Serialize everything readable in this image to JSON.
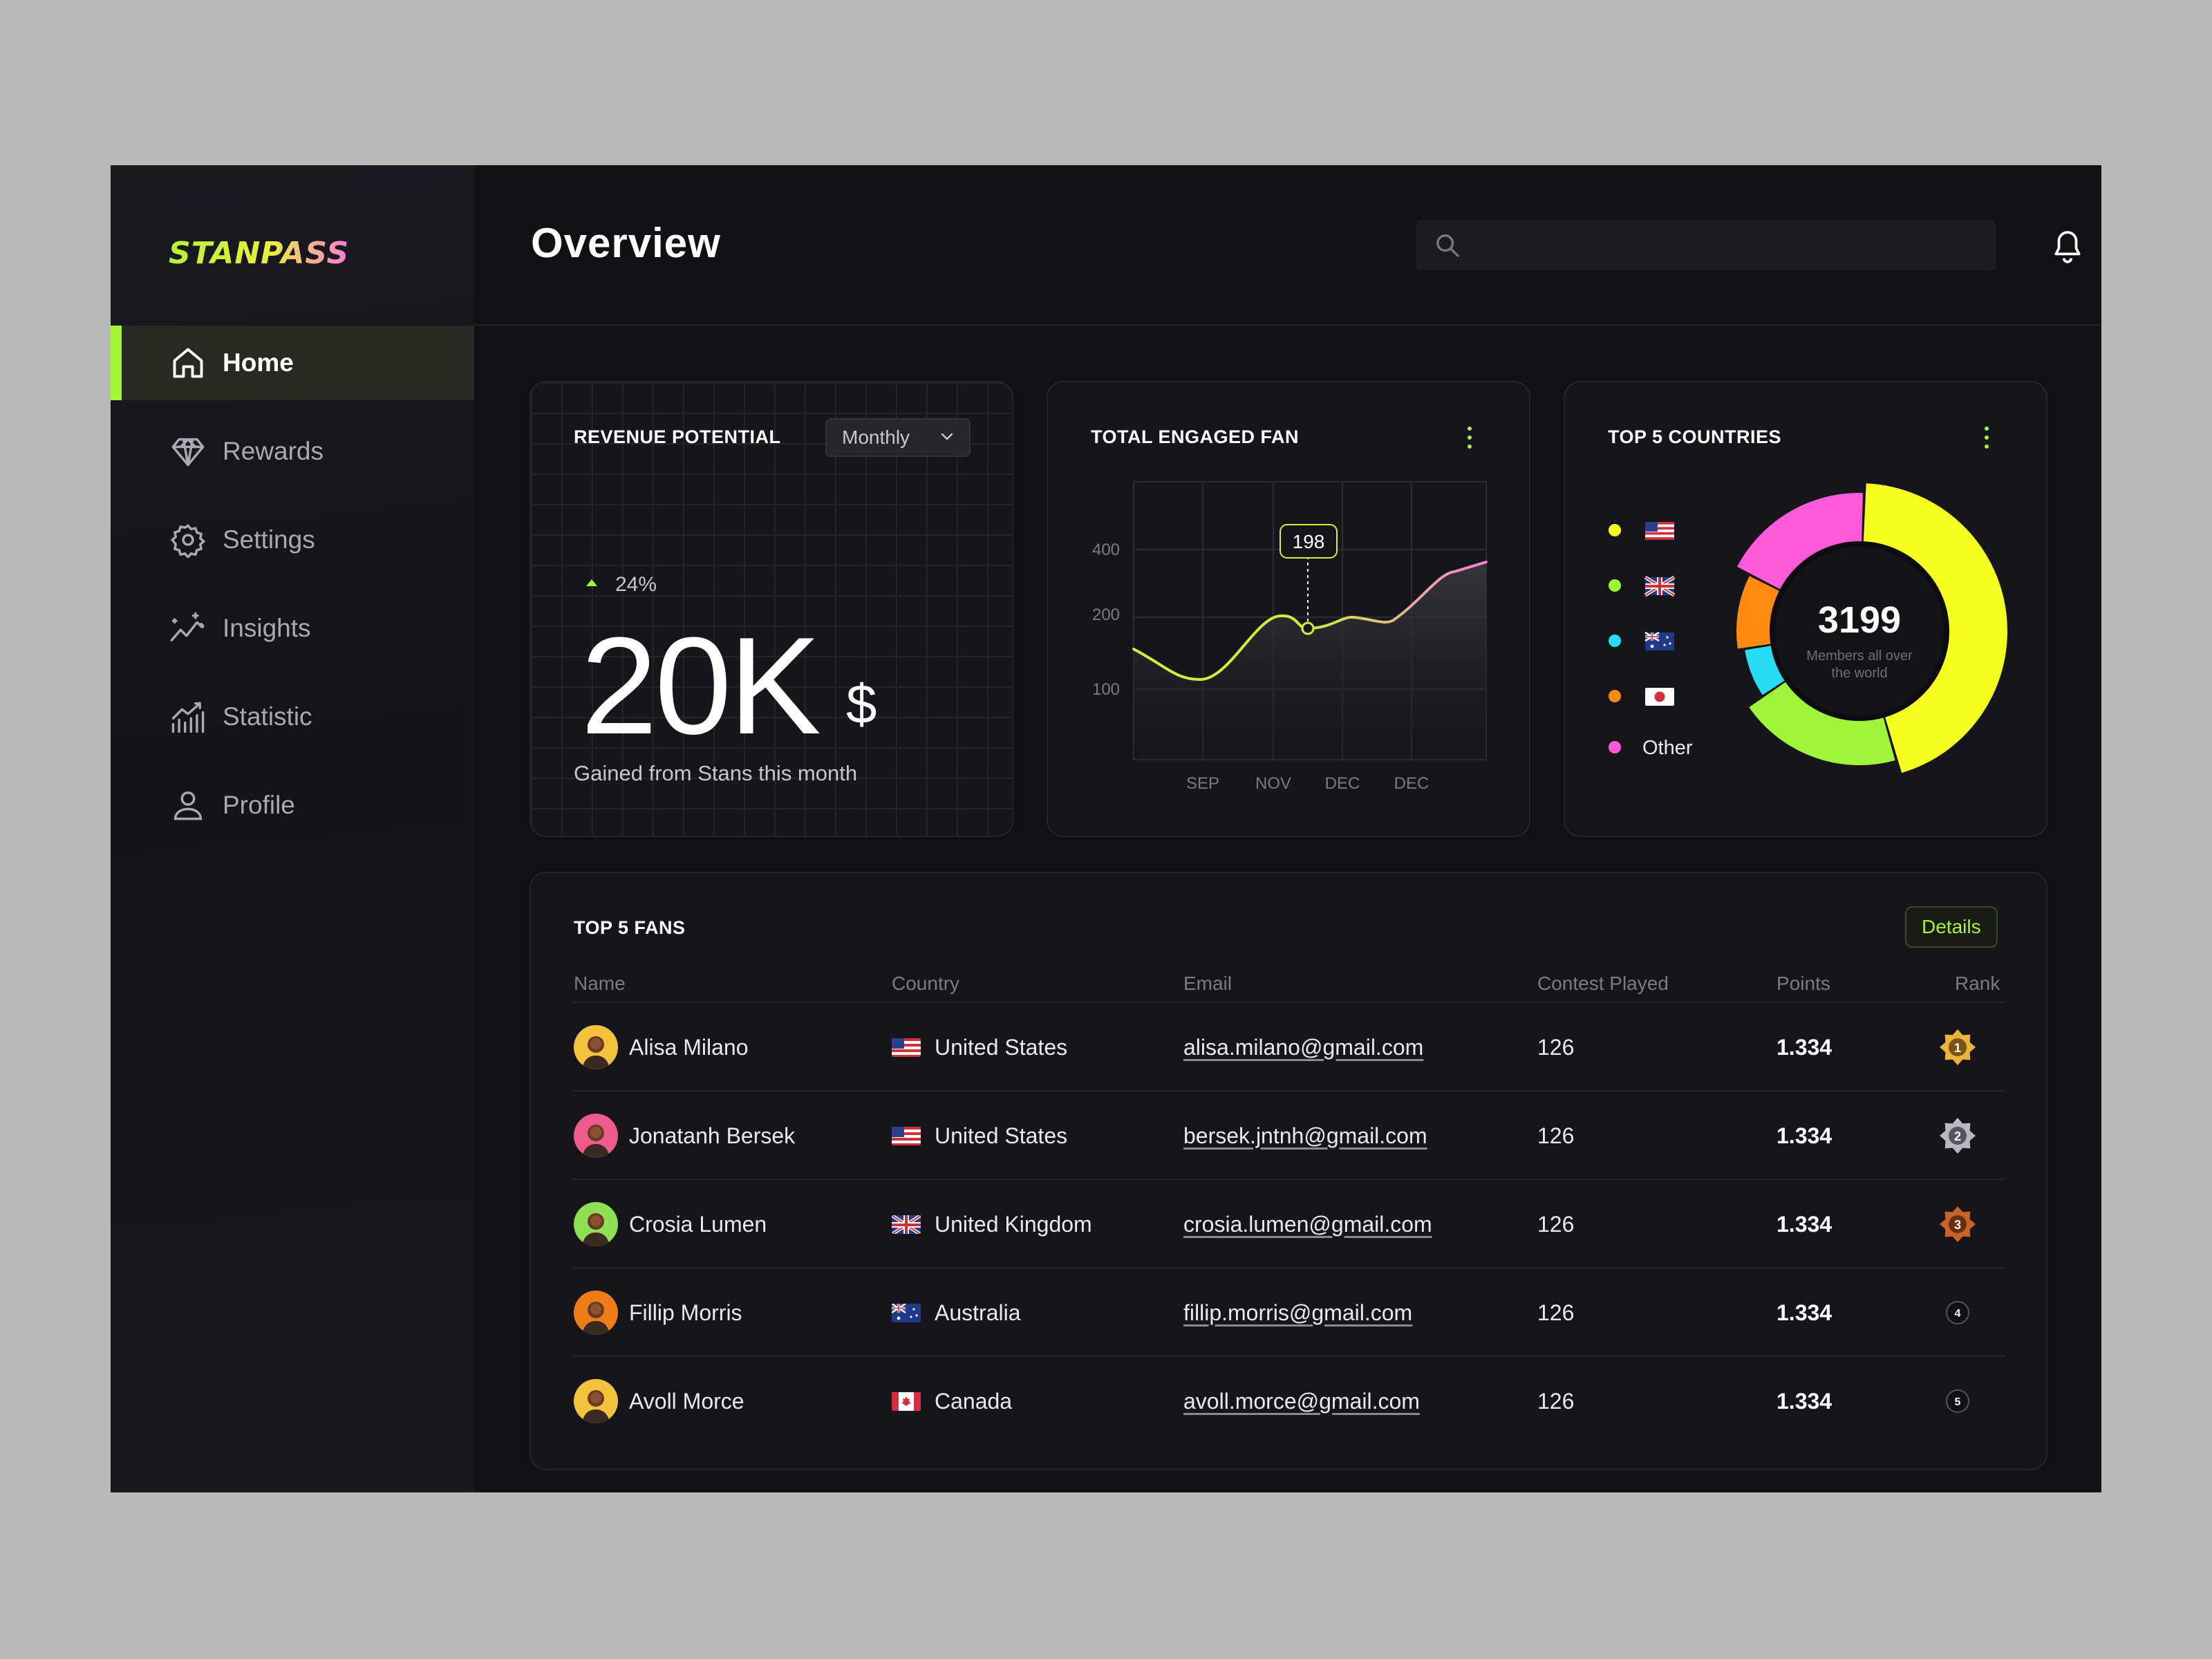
{
  "brand": {
    "name": "STANPASS"
  },
  "header": {
    "title": "Overview",
    "search_placeholder": ""
  },
  "sidebar": {
    "items": [
      {
        "label": "Home",
        "icon": "home-icon",
        "active": true
      },
      {
        "label": "Rewards",
        "icon": "diamond-icon",
        "active": false
      },
      {
        "label": "Settings",
        "icon": "gear-icon",
        "active": false
      },
      {
        "label": "Insights",
        "icon": "insights-icon",
        "active": false
      },
      {
        "label": "Statistic",
        "icon": "statistic-icon",
        "active": false
      },
      {
        "label": "Profile",
        "icon": "user-icon",
        "active": false
      }
    ]
  },
  "revenue": {
    "title": "REVENUE POTENTIAL",
    "period": "Monthly",
    "trend": "24%",
    "value": "20K",
    "unit": "$",
    "subtitle": "Gained from Stans this month"
  },
  "fans_chart": {
    "title": "TOTAL ENGAGED FAN",
    "tooltip": "198"
  },
  "chart_data": [
    {
      "type": "area",
      "title": "TOTAL ENGAGED FAN",
      "y_ticks": [
        "400",
        "200",
        "100"
      ],
      "x_ticks": [
        "SEP",
        "NOV",
        "DEC",
        "DEC"
      ],
      "highlight_value": 198,
      "colors": {
        "start": "#c8f03a",
        "end": "#ff7ad9"
      }
    },
    {
      "type": "pie",
      "title": "TOP 5 COUNTRIES",
      "center_value": "3199",
      "center_label": "Members all over the world",
      "labels": [
        "",
        "",
        "",
        "",
        "Other"
      ],
      "flags": [
        "us-flag-icon",
        "uk-flag-icon",
        "au-flag-icon",
        "jp-flag-icon",
        ""
      ],
      "values": [
        45,
        20,
        7,
        10,
        18
      ],
      "colors": [
        "#f5ff1f",
        "#9ef53a",
        "#27dcf5",
        "#ff8a10",
        "#ff5ad9"
      ]
    }
  ],
  "countries": {
    "title": "TOP 5 COUNTRIES",
    "center_value": "3199",
    "center_label_1": "Members all over",
    "center_label_2": "the world",
    "other_label": "Other"
  },
  "fans_table": {
    "title": "TOP 5 FANS",
    "details_label": "Details",
    "columns": [
      "Name",
      "Country",
      "Email",
      "Contest Played",
      "Points",
      "Rank"
    ],
    "rows": [
      {
        "name": "Alisa Milano",
        "country": "United States",
        "flag": "us-flag-icon",
        "email": "alisa.milano@gmail.com",
        "contests": "126",
        "points": "1.334",
        "rank": "1",
        "avatar_color": "#f3c33c"
      },
      {
        "name": "Jonatanh Bersek",
        "country": "United States",
        "flag": "us-flag-icon",
        "email": "bersek.jntnh@gmail.com",
        "contests": "126",
        "points": "1.334",
        "rank": "2",
        "avatar_color": "#ef5c8c"
      },
      {
        "name": "Crosia Lumen",
        "country": "United Kingdom",
        "flag": "uk-flag-icon",
        "email": "crosia.lumen@gmail.com",
        "contests": "126",
        "points": "1.334",
        "rank": "3",
        "avatar_color": "#8ee055"
      },
      {
        "name": "Fillip Morris",
        "country": "Australia",
        "flag": "au-flag-icon",
        "email": "fillip.morris@gmail.com",
        "contests": "126",
        "points": "1.334",
        "rank": "4",
        "avatar_color": "#f17d1a"
      },
      {
        "name": "Avoll Morce",
        "country": "Canada",
        "flag": "ca-flag-icon",
        "email": "avoll.morce@gmail.com",
        "contests": "126",
        "points": "1.334",
        "rank": "5",
        "avatar_color": "#f3c33c"
      }
    ]
  }
}
